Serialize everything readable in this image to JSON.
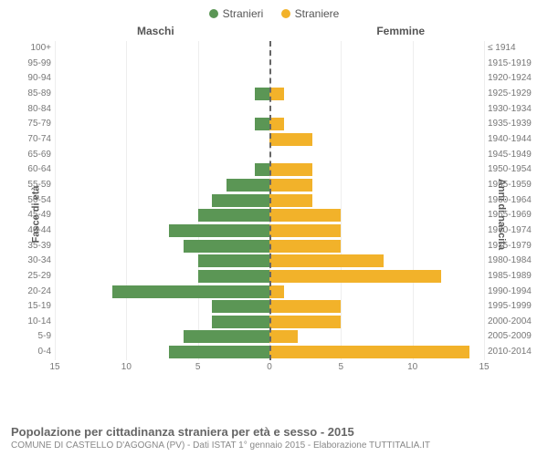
{
  "legend": {
    "male": {
      "label": "Stranieri",
      "color": "#5b9655"
    },
    "female": {
      "label": "Straniere",
      "color": "#f2b22a"
    }
  },
  "headers": {
    "left": "Maschi",
    "right": "Femmine"
  },
  "y_axis_left": "Fasce di età",
  "y_axis_right": "Anni di nascita",
  "chart": {
    "type": "population-pyramid",
    "x_max": 15,
    "x_ticks_left": [
      15,
      10,
      5,
      0
    ],
    "x_ticks_right": [
      5,
      10,
      15
    ],
    "grid_color": "#eeeeee",
    "center_line_color": "#666666",
    "bar_color_male": "#5b9655",
    "bar_color_female": "#f2b22a",
    "rows": [
      {
        "age": "100+",
        "birth": "≤ 1914",
        "m": 0,
        "f": 0
      },
      {
        "age": "95-99",
        "birth": "1915-1919",
        "m": 0,
        "f": 0
      },
      {
        "age": "90-94",
        "birth": "1920-1924",
        "m": 0,
        "f": 0
      },
      {
        "age": "85-89",
        "birth": "1925-1929",
        "m": 1,
        "f": 1
      },
      {
        "age": "80-84",
        "birth": "1930-1934",
        "m": 0,
        "f": 0
      },
      {
        "age": "75-79",
        "birth": "1935-1939",
        "m": 1,
        "f": 1
      },
      {
        "age": "70-74",
        "birth": "1940-1944",
        "m": 0,
        "f": 3
      },
      {
        "age": "65-69",
        "birth": "1945-1949",
        "m": 0,
        "f": 0
      },
      {
        "age": "60-64",
        "birth": "1950-1954",
        "m": 1,
        "f": 3
      },
      {
        "age": "55-59",
        "birth": "1955-1959",
        "m": 3,
        "f": 3
      },
      {
        "age": "50-54",
        "birth": "1960-1964",
        "m": 4,
        "f": 3
      },
      {
        "age": "45-49",
        "birth": "1965-1969",
        "m": 5,
        "f": 5
      },
      {
        "age": "40-44",
        "birth": "1970-1974",
        "m": 7,
        "f": 5
      },
      {
        "age": "35-39",
        "birth": "1975-1979",
        "m": 6,
        "f": 5
      },
      {
        "age": "30-34",
        "birth": "1980-1984",
        "m": 5,
        "f": 8
      },
      {
        "age": "25-29",
        "birth": "1985-1989",
        "m": 5,
        "f": 12
      },
      {
        "age": "20-24",
        "birth": "1990-1994",
        "m": 11,
        "f": 1
      },
      {
        "age": "15-19",
        "birth": "1995-1999",
        "m": 4,
        "f": 5
      },
      {
        "age": "10-14",
        "birth": "2000-2004",
        "m": 4,
        "f": 5
      },
      {
        "age": "5-9",
        "birth": "2005-2009",
        "m": 6,
        "f": 2
      },
      {
        "age": "0-4",
        "birth": "2010-2014",
        "m": 7,
        "f": 14
      }
    ]
  },
  "footer": {
    "title": "Popolazione per cittadinanza straniera per età e sesso - 2015",
    "subtitle": "COMUNE DI CASTELLO D'AGOGNA (PV) - Dati ISTAT 1° gennaio 2015 - Elaborazione TUTTITALIA.IT"
  }
}
